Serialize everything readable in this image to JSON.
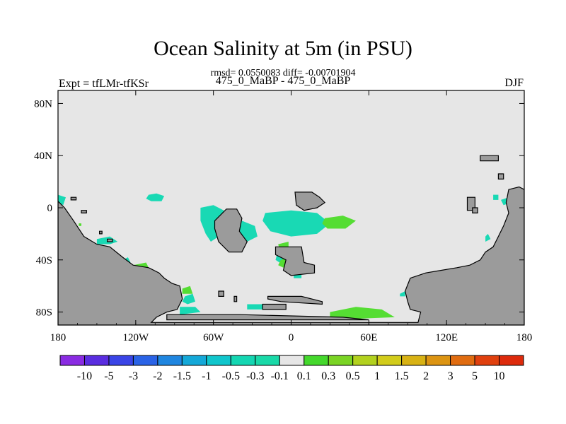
{
  "header": {
    "title": "Ocean Salinity at 5m (in PSU)",
    "stats": "rmsd= 0.0550083 diff= -0.00701904",
    "experiment": "Expt = tfLMr-tfKSr",
    "period": "475_0_MaBP - 475_0_MaBP",
    "season": "DJF"
  },
  "chart_data": {
    "type": "heatmap",
    "title": "Ocean Salinity at 5m (in PSU)",
    "xlim": [
      -180,
      180
    ],
    "ylim": [
      -90,
      90
    ],
    "x_ticks": [
      {
        "value": -180,
        "label": "180"
      },
      {
        "value": -120,
        "label": "120W"
      },
      {
        "value": -60,
        "label": "60W"
      },
      {
        "value": 0,
        "label": "0"
      },
      {
        "value": 60,
        "label": "60E"
      },
      {
        "value": 120,
        "label": "120E"
      },
      {
        "value": 180,
        "label": "180"
      }
    ],
    "y_ticks": [
      {
        "value": 80,
        "label": "80N"
      },
      {
        "value": 40,
        "label": "40N"
      },
      {
        "value": 0,
        "label": "0"
      },
      {
        "value": -40,
        "label": "40S"
      },
      {
        "value": -80,
        "label": "80S"
      }
    ],
    "background_value_range": [
      -0.1,
      0.1
    ],
    "colors": {
      "background": "#e6e6e6",
      "land": "#9b9b9b",
      "neg_small": "#19d9b4",
      "pos_small": "#55dd33",
      "pos_mid": "#99d622",
      "pos_high": "#d4d41e"
    },
    "colorbar": {
      "labels": [
        "-10",
        "-5",
        "-3",
        "-2",
        "-1.5",
        "-1",
        "-0.5",
        "-0.3",
        "-0.1",
        "0.1",
        "0.3",
        "0.5",
        "1",
        "1.5",
        "2",
        "3",
        "5",
        "10"
      ],
      "colors": [
        "#8a2be2",
        "#5a2de0",
        "#3a44e6",
        "#2a63e6",
        "#1f86e0",
        "#14a8d8",
        "#10c6cc",
        "#14d6b2",
        "#19d9a8",
        "#e6e6e6",
        "#44d82c",
        "#7ad424",
        "#b2d11e",
        "#d2cc1a",
        "#d8b214",
        "#dc9412",
        "#e06c10",
        "#e0400e",
        "#dd2a0c"
      ]
    },
    "land_regions": [
      [
        [
          -180,
          5
        ],
        [
          -175,
          0
        ],
        [
          -168,
          -10
        ],
        [
          -160,
          -22
        ],
        [
          -150,
          -28
        ],
        [
          -140,
          -30
        ],
        [
          -130,
          -38
        ],
        [
          -122,
          -44
        ],
        [
          -110,
          -46
        ],
        [
          -102,
          -50
        ],
        [
          -98,
          -54
        ],
        [
          -92,
          -58
        ],
        [
          -86,
          -60
        ],
        [
          -84,
          -70
        ],
        [
          -88,
          -78
        ],
        [
          -96,
          -80
        ],
        [
          -104,
          -84
        ],
        [
          -108,
          -88
        ],
        [
          98,
          -88
        ],
        [
          100,
          -80
        ],
        [
          92,
          -78
        ],
        [
          90,
          -72
        ],
        [
          88,
          -64
        ],
        [
          92,
          -54
        ],
        [
          104,
          -50
        ],
        [
          116,
          -48
        ],
        [
          128,
          -46
        ],
        [
          138,
          -44
        ],
        [
          146,
          -40
        ],
        [
          150,
          -34
        ],
        [
          156,
          -30
        ],
        [
          160,
          -22
        ],
        [
          164,
          -14
        ],
        [
          168,
          -4
        ],
        [
          166,
          4
        ],
        [
          168,
          14
        ],
        [
          176,
          16
        ],
        [
          180,
          14
        ],
        [
          180,
          -90
        ],
        [
          -180,
          -90
        ]
      ],
      [
        [
          -96,
          -82
        ],
        [
          -40,
          -82
        ],
        [
          40,
          -84
        ],
        [
          60,
          -86
        ],
        [
          -96,
          -86
        ]
      ],
      [
        [
          -59,
          -10
        ],
        [
          -50,
          -1
        ],
        [
          -42,
          -1
        ],
        [
          -38,
          -8
        ],
        [
          -40,
          -18
        ],
        [
          -34,
          -26
        ],
        [
          -38,
          -34
        ],
        [
          -48,
          -34
        ],
        [
          -56,
          -26
        ],
        [
          -59,
          -16
        ]
      ],
      [
        [
          -12,
          -30
        ],
        [
          8,
          -30
        ],
        [
          10,
          -42
        ],
        [
          18,
          -44
        ],
        [
          18,
          -50
        ],
        [
          0,
          -52
        ],
        [
          -6,
          -48
        ],
        [
          -4,
          -40
        ],
        [
          -12,
          -36
        ]
      ],
      [
        [
          3,
          12
        ],
        [
          16,
          12
        ],
        [
          22,
          8
        ],
        [
          26,
          4
        ],
        [
          20,
          0
        ],
        [
          10,
          -2
        ],
        [
          4,
          2
        ]
      ],
      [
        [
          -18,
          -68
        ],
        [
          8,
          -68
        ],
        [
          24,
          -72
        ],
        [
          24,
          -74
        ],
        [
          -8,
          -72
        ],
        [
          -18,
          -70
        ]
      ],
      [
        [
          -22,
          -74
        ],
        [
          -4,
          -74
        ],
        [
          -4,
          -78
        ],
        [
          -22,
          -78
        ]
      ],
      [
        [
          146,
          40
        ],
        [
          160,
          40
        ],
        [
          160,
          36
        ],
        [
          146,
          36
        ]
      ],
      [
        [
          160,
          26
        ],
        [
          164,
          26
        ],
        [
          164,
          22
        ],
        [
          160,
          22
        ]
      ],
      [
        [
          136,
          8
        ],
        [
          142,
          8
        ],
        [
          142,
          -2
        ],
        [
          136,
          -2
        ]
      ],
      [
        [
          140,
          0
        ],
        [
          144,
          0
        ],
        [
          144,
          -4
        ],
        [
          140,
          -4
        ]
      ],
      [
        [
          -170,
          8
        ],
        [
          -166,
          8
        ],
        [
          -166,
          6
        ],
        [
          -170,
          6
        ]
      ],
      [
        [
          -162,
          -2
        ],
        [
          -158,
          -2
        ],
        [
          -158,
          -4
        ],
        [
          -162,
          -4
        ]
      ],
      [
        [
          -148,
          -18
        ],
        [
          -146,
          -18
        ],
        [
          -146,
          -20
        ],
        [
          -148,
          -20
        ]
      ],
      [
        [
          -142,
          -24
        ],
        [
          -138,
          -24
        ],
        [
          -138,
          -26
        ],
        [
          -142,
          -26
        ]
      ],
      [
        [
          -56,
          -64
        ],
        [
          -52,
          -64
        ],
        [
          -52,
          -68
        ],
        [
          -56,
          -68
        ]
      ],
      [
        [
          -44,
          -68
        ],
        [
          -42,
          -68
        ],
        [
          -42,
          -72
        ],
        [
          -44,
          -72
        ]
      ]
    ],
    "anomaly_regions": [
      {
        "color": "neg_small",
        "points": [
          [
            -180,
            10
          ],
          [
            -174,
            8
          ],
          [
            -176,
            2
          ],
          [
            -180,
            4
          ]
        ]
      },
      {
        "color": "neg_small",
        "points": [
          [
            -110,
            10
          ],
          [
            -104,
            11
          ],
          [
            -98,
            9
          ],
          [
            -100,
            5
          ],
          [
            -108,
            5
          ],
          [
            -112,
            7
          ]
        ]
      },
      {
        "color": "neg_small",
        "points": [
          [
            -70,
            0
          ],
          [
            -60,
            2
          ],
          [
            -52,
            -2
          ],
          [
            -52,
            -12
          ],
          [
            -56,
            -22
          ],
          [
            -62,
            -26
          ],
          [
            -66,
            -20
          ],
          [
            -70,
            -10
          ]
        ]
      },
      {
        "color": "neg_small",
        "points": [
          [
            -38,
            -10
          ],
          [
            -28,
            -14
          ],
          [
            -26,
            -22
          ],
          [
            -34,
            -26
          ],
          [
            -38,
            -24
          ],
          [
            -40,
            -18
          ]
        ]
      },
      {
        "color": "neg_small",
        "points": [
          [
            -150,
            -24
          ],
          [
            -140,
            -22
          ],
          [
            -134,
            -26
          ],
          [
            -140,
            -28
          ],
          [
            -150,
            -28
          ]
        ]
      },
      {
        "color": "neg_small",
        "points": [
          [
            -130,
            -40
          ],
          [
            -126,
            -38
          ],
          [
            -124,
            -42
          ],
          [
            -130,
            -42
          ]
        ]
      },
      {
        "color": "neg_small",
        "points": [
          [
            -20,
            -4
          ],
          [
            0,
            -2
          ],
          [
            20,
            -4
          ],
          [
            30,
            -12
          ],
          [
            20,
            -20
          ],
          [
            0,
            -22
          ],
          [
            -16,
            -18
          ],
          [
            -22,
            -10
          ]
        ]
      },
      {
        "color": "neg_small",
        "points": [
          [
            -10,
            -32
          ],
          [
            0,
            -30
          ],
          [
            2,
            -40
          ],
          [
            -6,
            -44
          ],
          [
            -12,
            -40
          ]
        ]
      },
      {
        "color": "neg_small",
        "points": [
          [
            2,
            -52
          ],
          [
            8,
            -50
          ],
          [
            8,
            -54
          ],
          [
            2,
            -54
          ]
        ]
      },
      {
        "color": "neg_small",
        "points": [
          [
            -82,
            -68
          ],
          [
            -76,
            -66
          ],
          [
            -74,
            -72
          ],
          [
            -80,
            -74
          ],
          [
            -84,
            -72
          ]
        ]
      },
      {
        "color": "neg_small",
        "points": [
          [
            -86,
            -76
          ],
          [
            -74,
            -76
          ],
          [
            -70,
            -80
          ],
          [
            -86,
            -82
          ]
        ]
      },
      {
        "color": "neg_small",
        "points": [
          [
            -34,
            -74
          ],
          [
            -14,
            -74
          ],
          [
            -14,
            -78
          ],
          [
            -34,
            -78
          ]
        ]
      },
      {
        "color": "neg_small",
        "points": [
          [
            150,
            -22
          ],
          [
            152,
            -20
          ],
          [
            154,
            -24
          ],
          [
            150,
            -26
          ]
        ]
      },
      {
        "color": "neg_small",
        "points": [
          [
            162,
            6
          ],
          [
            168,
            8
          ],
          [
            170,
            4
          ],
          [
            164,
            2
          ]
        ]
      },
      {
        "color": "neg_small",
        "points": [
          [
            170,
            0
          ],
          [
            178,
            2
          ],
          [
            180,
            0
          ],
          [
            180,
            -4
          ],
          [
            172,
            -4
          ]
        ]
      },
      {
        "color": "neg_small",
        "points": [
          [
            84,
            -66
          ],
          [
            88,
            -64
          ],
          [
            88,
            -68
          ],
          [
            84,
            -68
          ]
        ]
      },
      {
        "color": "neg_small",
        "points": [
          [
            156,
            10
          ],
          [
            160,
            10
          ],
          [
            160,
            6
          ],
          [
            156,
            6
          ]
        ]
      },
      {
        "color": "pos_small",
        "points": [
          [
            26,
            -8
          ],
          [
            40,
            -6
          ],
          [
            50,
            -10
          ],
          [
            42,
            -16
          ],
          [
            28,
            -16
          ],
          [
            24,
            -12
          ]
        ]
      },
      {
        "color": "pos_small",
        "points": [
          [
            30,
            -80
          ],
          [
            50,
            -76
          ],
          [
            70,
            -78
          ],
          [
            80,
            -84
          ],
          [
            30,
            -86
          ]
        ]
      },
      {
        "color": "pos_small",
        "points": [
          [
            -84,
            -62
          ],
          [
            -78,
            -60
          ],
          [
            -76,
            -66
          ],
          [
            -84,
            -66
          ]
        ]
      },
      {
        "color": "pos_small",
        "points": [
          [
            -122,
            -44
          ],
          [
            -112,
            -42
          ],
          [
            -110,
            -46
          ],
          [
            -120,
            -46
          ]
        ]
      },
      {
        "color": "pos_small",
        "points": [
          [
            -10,
            -28
          ],
          [
            -2,
            -26
          ],
          [
            -2,
            -36
          ],
          [
            -8,
            -36
          ]
        ]
      },
      {
        "color": "pos_small",
        "points": [
          [
            2,
            -48
          ],
          [
            8,
            -46
          ],
          [
            8,
            -50
          ],
          [
            2,
            -50
          ]
        ]
      },
      {
        "color": "pos_small",
        "points": [
          [
            -164,
            -12
          ],
          [
            -162,
            -12
          ],
          [
            -162,
            -14
          ],
          [
            -164,
            -14
          ]
        ]
      },
      {
        "color": "pos_small",
        "points": [
          [
            -8,
            -40
          ],
          [
            -2,
            -38
          ],
          [
            -2,
            -44
          ],
          [
            -6,
            -46
          ],
          [
            -10,
            -44
          ]
        ]
      },
      {
        "color": "pos_mid",
        "points": [
          [
            -50,
            -10
          ],
          [
            -44,
            -8
          ],
          [
            -42,
            -16
          ],
          [
            -48,
            -20
          ],
          [
            -52,
            -16
          ]
        ]
      },
      {
        "color": "pos_high",
        "points": [
          [
            -49,
            -14
          ],
          [
            -45,
            -12
          ],
          [
            -44,
            -17
          ],
          [
            -48,
            -19
          ]
        ]
      },
      {
        "color": "pos_high",
        "points": [
          [
            -6,
            -36
          ],
          [
            -2,
            -34
          ],
          [
            -2,
            -38
          ],
          [
            -5,
            -40
          ]
        ]
      }
    ]
  }
}
